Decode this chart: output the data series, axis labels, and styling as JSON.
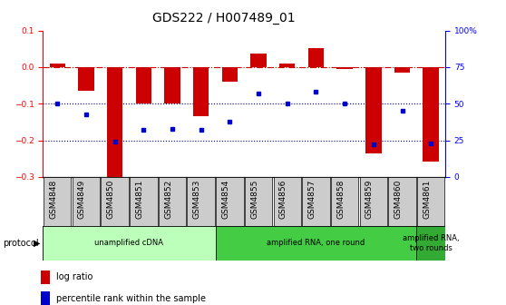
{
  "title": "GDS222 / H007489_01",
  "samples": [
    "GSM4848",
    "GSM4849",
    "GSM4850",
    "GSM4851",
    "GSM4852",
    "GSM4853",
    "GSM4854",
    "GSM4855",
    "GSM4856",
    "GSM4857",
    "GSM4858",
    "GSM4859",
    "GSM4860",
    "GSM4861"
  ],
  "log_ratio": [
    0.01,
    -0.065,
    -0.305,
    -0.1,
    -0.1,
    -0.135,
    -0.04,
    0.037,
    0.01,
    0.052,
    -0.005,
    -0.235,
    -0.015,
    -0.258
  ],
  "percentile_rank": [
    50,
    43,
    24,
    32,
    33,
    32,
    38,
    57,
    50,
    58,
    50,
    22,
    45,
    23
  ],
  "ylim_left": [
    -0.3,
    0.1
  ],
  "ylim_right": [
    0,
    100
  ],
  "yticks_left": [
    -0.3,
    -0.2,
    -0.1,
    0.0,
    0.1
  ],
  "yticks_right": [
    0,
    25,
    50,
    75,
    100
  ],
  "ytick_labels_right": [
    "0",
    "25",
    "50",
    "75",
    "100%"
  ],
  "bar_color": "#cc0000",
  "dot_color": "#0000cc",
  "hline_color": "#cc0000",
  "dotline_color": "#000080",
  "protocol_groups": [
    {
      "label": "unamplified cDNA",
      "start": 0,
      "end": 5,
      "color": "#bbffbb"
    },
    {
      "label": "amplified RNA, one round",
      "start": 6,
      "end": 12,
      "color": "#44cc44"
    },
    {
      "label": "amplified RNA,\ntwo rounds",
      "start": 13,
      "end": 13,
      "color": "#33aa33"
    }
  ],
  "legend_items": [
    {
      "color": "#cc0000",
      "label": "log ratio"
    },
    {
      "color": "#0000cc",
      "label": "percentile rank within the sample"
    }
  ],
  "bar_width": 0.55,
  "title_fontsize": 10,
  "tick_fontsize": 6.5,
  "label_fontsize": 7,
  "protocol_label": "protocol",
  "bg_color": "#ffffff",
  "spine_color": "#000000",
  "sample_box_color": "#cccccc"
}
